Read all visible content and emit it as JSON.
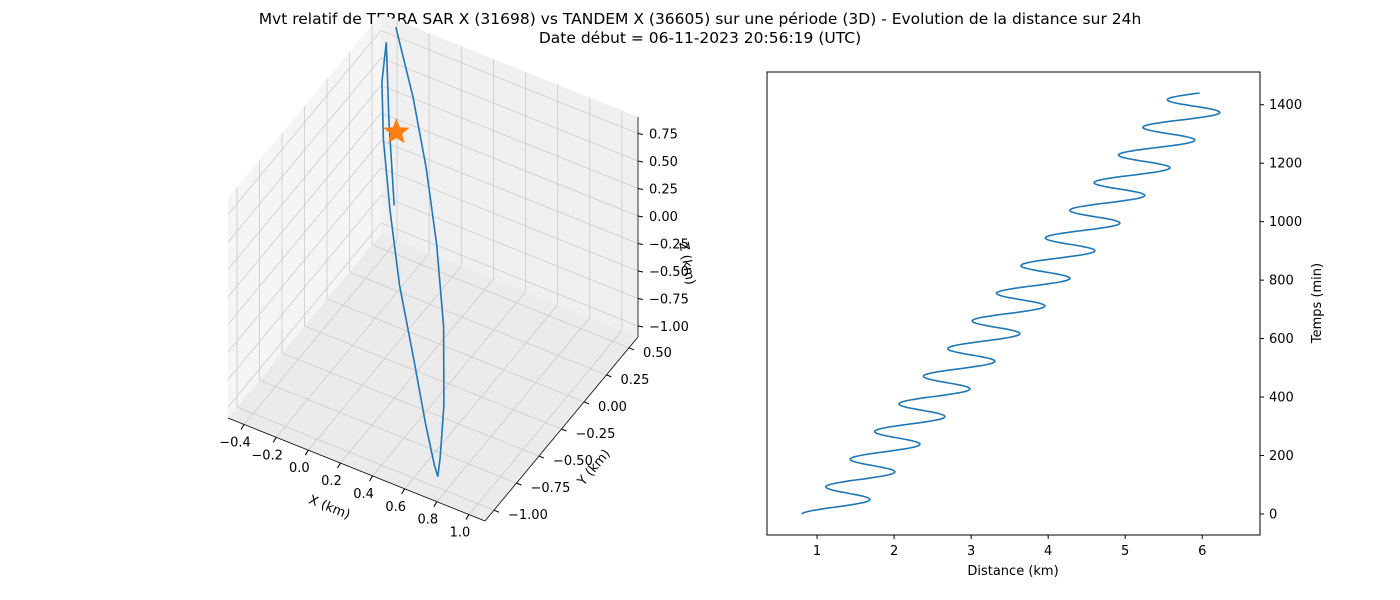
{
  "title": {
    "line1": "Mvt relatif de TERRA SAR X (31698) vs TANDEM X (36605) sur une période (3D) - Evolution de la distance sur 24h",
    "line2": "Date début = 06-11-2023 20:56:19 (UTC)"
  },
  "colors": {
    "series": "#1f77b4",
    "marker": "#ff7f0e",
    "pane": "#f2f2f2",
    "grid": "#cccccc"
  },
  "chart_data": [
    {
      "type": "line",
      "subtype": "3d-trajectory",
      "xlabel": "X (km)",
      "ylabel": "Y (km)",
      "zlabel": "Z (km)",
      "xlim": [
        -0.5,
        1.1
      ],
      "ylim": [
        -1.1,
        0.6
      ],
      "zlim": [
        -1.1,
        0.9
      ],
      "x_ticks": [
        "−0.4",
        "−0.2",
        "0.0",
        "0.2",
        "0.4",
        "0.6",
        "0.8",
        "1.0"
      ],
      "y_ticks": [
        "−1.00",
        "−0.75",
        "−0.50",
        "−0.25",
        "0.00",
        "0.25",
        "0.50"
      ],
      "z_ticks": [
        "−1.00",
        "−0.75",
        "−0.50",
        "−0.25",
        "0.00",
        "0.25",
        "0.50",
        "0.75"
      ],
      "series": [
        {
          "x": [
            -0.38,
            -0.3,
            -0.15,
            0.05,
            0.25,
            0.45,
            0.62,
            0.72,
            0.75,
            0.7,
            0.55,
            0.35,
            0.12,
            -0.08,
            -0.25,
            -0.36,
            -0.4,
            -0.35,
            -0.25
          ],
          "y": [
            0.55,
            0.47,
            0.33,
            0.12,
            -0.12,
            -0.4,
            -0.7,
            -0.92,
            -1.0,
            -0.95,
            -0.78,
            -0.55,
            -0.3,
            -0.05,
            0.18,
            0.36,
            0.48,
            0.42,
            0.3
          ],
          "z": [
            0.9,
            0.82,
            0.62,
            0.3,
            -0.05,
            -0.4,
            -0.72,
            -0.92,
            -1.0,
            -0.97,
            -0.85,
            -0.62,
            -0.32,
            0.0,
            0.32,
            0.6,
            0.82,
            0.2,
            -0.4
          ]
        }
      ],
      "markers": [
        {
          "shape": "star",
          "x": -0.32,
          "y": 0.45,
          "z": 0.08
        }
      ],
      "grid": true
    },
    {
      "type": "line",
      "xlabel": "Distance (km)",
      "ylabel": "Temps (min)",
      "xlim": [
        0.35,
        6.75
      ],
      "ylim": [
        -72,
        1512
      ],
      "x_ticks": [
        1,
        2,
        3,
        4,
        5,
        6
      ],
      "y_ticks": [
        0,
        200,
        400,
        600,
        800,
        1000,
        1200,
        1400
      ],
      "y_axis_side": "right",
      "grid": false,
      "series": [
        {
          "mean_start": 1.16,
          "mean_end": 6.04,
          "amplitude_start": 0.36,
          "amplitude_end": 0.42,
          "period": 94.6,
          "t_start": 0,
          "t_end": 1440
        }
      ]
    }
  ]
}
